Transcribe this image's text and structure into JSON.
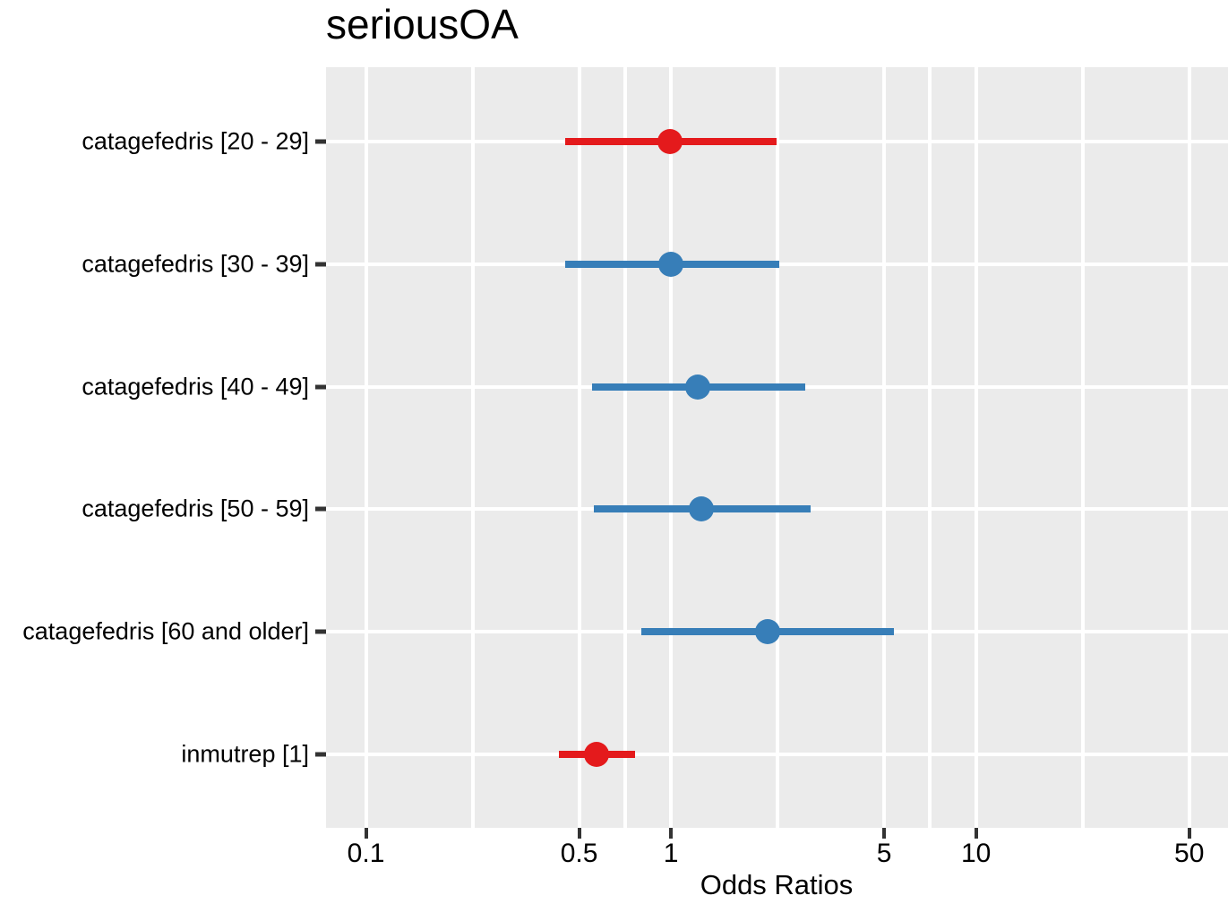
{
  "title": "seriousOA",
  "colors": {
    "red": "#e41a1c",
    "blue": "#377eb8",
    "panel_bg": "#ebebeb",
    "gridline": "#ffffff",
    "tick_mark": "#333333",
    "text": "#000000"
  },
  "chart_data": {
    "type": "scatter",
    "subtype": "forest-plot-odds-ratios",
    "title": "seriousOA",
    "xlabel": "Odds Ratios",
    "ylabel": "",
    "x_scale": "log10",
    "xlim": [
      0.074,
      67
    ],
    "grid": true,
    "legend": false,
    "x_ticks": {
      "values": [
        0.1,
        0.5,
        1,
        5,
        10,
        50
      ],
      "labels": [
        "0.1",
        "0.5",
        "1",
        "5",
        "10",
        "50"
      ]
    },
    "x_minor_gridlines": [
      0.2236,
      0.7071,
      2.2361,
      7.0711,
      22.3607
    ],
    "points": [
      {
        "label": "catagefedris [20 - 29]",
        "or": 0.99,
        "ci_low": 0.45,
        "ci_high": 2.22,
        "color": "red"
      },
      {
        "label": "catagefedris [30 - 39]",
        "or": 1.0,
        "ci_low": 0.45,
        "ci_high": 2.27,
        "color": "blue"
      },
      {
        "label": "catagefedris [40 - 49]",
        "or": 1.22,
        "ci_low": 0.55,
        "ci_high": 2.76,
        "color": "blue"
      },
      {
        "label": "catagefedris [50 - 59]",
        "or": 1.26,
        "ci_low": 0.56,
        "ci_high": 2.87,
        "color": "blue"
      },
      {
        "label": "catagefedris [60 and older]",
        "or": 2.07,
        "ci_low": 0.8,
        "ci_high": 5.39,
        "color": "blue"
      },
      {
        "label": "inmutrep [1]",
        "or": 0.57,
        "ci_low": 0.43,
        "ci_high": 0.76,
        "color": "red"
      }
    ]
  }
}
